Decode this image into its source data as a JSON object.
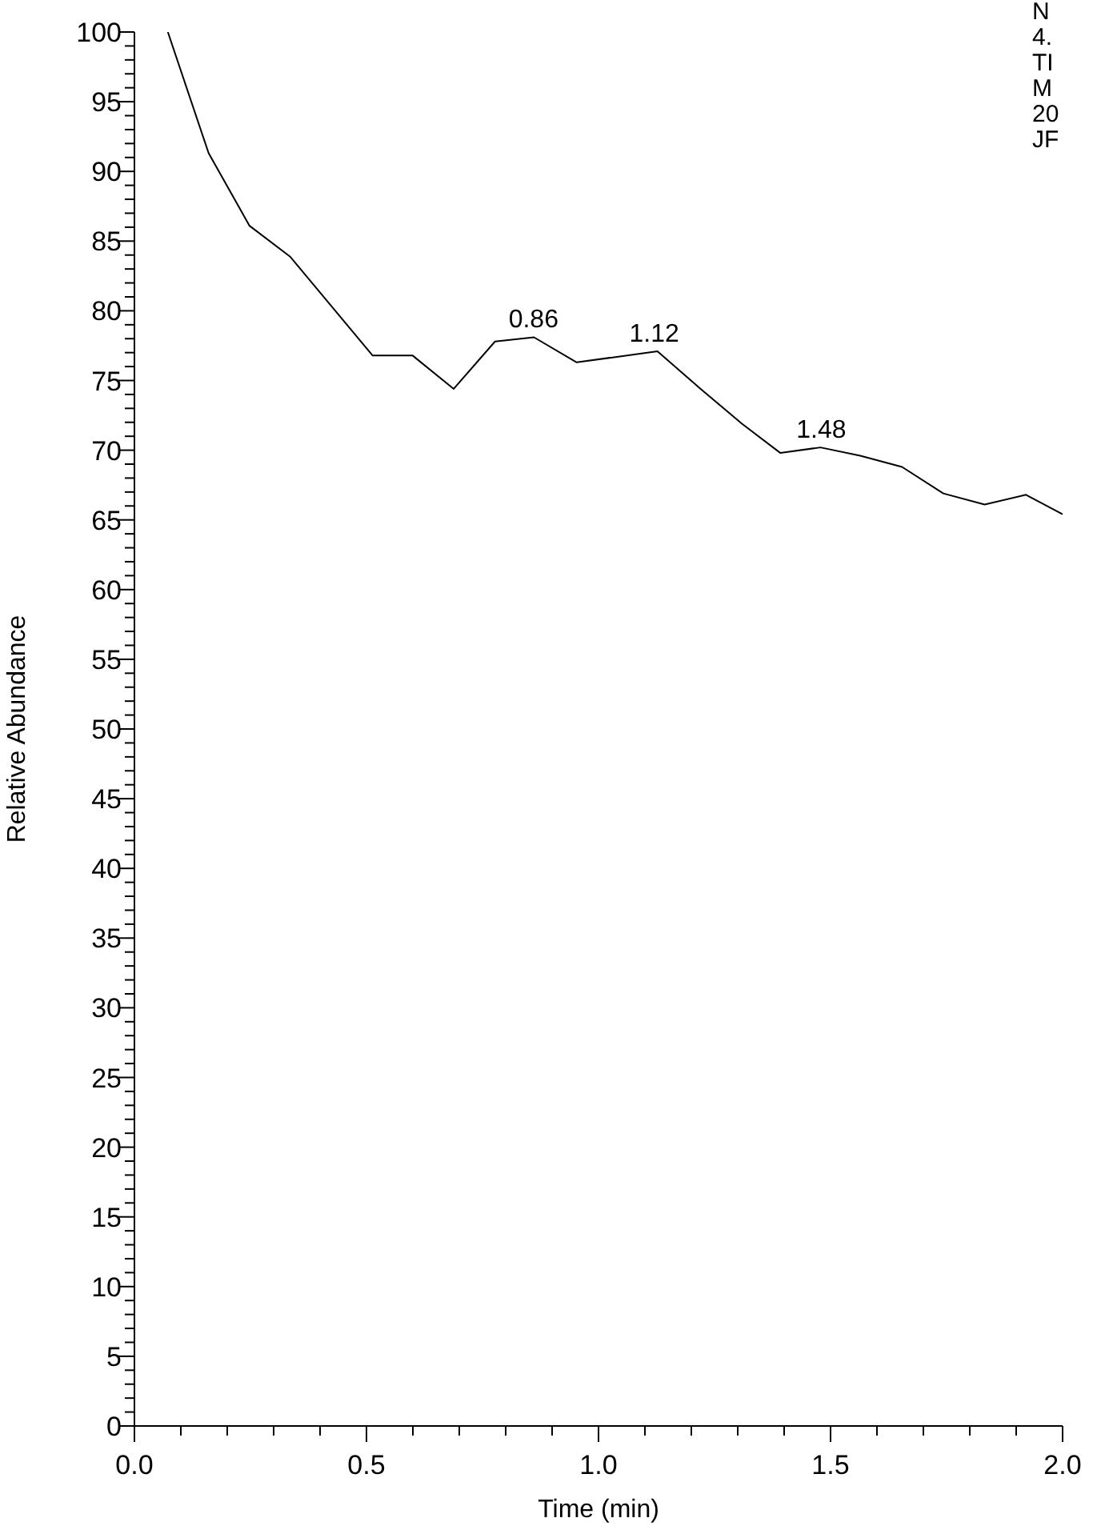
{
  "chart_data": {
    "type": "line",
    "xlabel": "Time (min)",
    "ylabel": "Relative Abundance",
    "x": [
      0.072,
      0.16,
      0.248,
      0.335,
      0.513,
      0.599,
      0.688,
      0.777,
      0.861,
      0.953,
      1.127,
      1.22,
      1.309,
      1.392,
      1.478,
      1.564,
      1.654,
      1.743,
      1.832,
      1.921,
      2.0
    ],
    "series": [
      {
        "color": "#000000",
        "values": [
          100,
          91.3,
          86.1,
          83.9,
          76.8,
          76.8,
          74.4,
          77.8,
          78.1,
          76.3,
          77.1,
          74.4,
          71.9,
          69.8,
          70.2,
          69.6,
          68.8,
          66.9,
          66.1,
          66.8,
          65.4
        ]
      }
    ],
    "xlim": [
      0,
      2
    ],
    "xticks": [
      {
        "value": 0,
        "label": "0.0"
      },
      {
        "value": 0.1,
        "label": null
      },
      {
        "value": 0.2,
        "label": null
      },
      {
        "value": 0.3,
        "label": null
      },
      {
        "value": 0.4,
        "label": null
      },
      0.5,
      {
        "value": 0.6,
        "label": null
      },
      {
        "value": 0.7,
        "label": null
      },
      {
        "value": 0.8,
        "label": null
      },
      {
        "value": 0.9,
        "label": null
      },
      {
        "value": 1,
        "label": "1.0"
      },
      {
        "value": 1.1,
        "label": null
      },
      {
        "value": 1.2,
        "label": null
      },
      {
        "value": 1.3,
        "label": null
      },
      {
        "value": 1.4,
        "label": null
      },
      1.5,
      {
        "value": 1.6,
        "label": null
      },
      {
        "value": 1.7,
        "label": null
      },
      {
        "value": 1.8,
        "label": null
      },
      {
        "value": 1.9,
        "label": null
      },
      {
        "value": 2,
        "label": "2.0"
      }
    ],
    "ylim": [
      0,
      100
    ],
    "yticks": [
      0,
      {
        "value": 1,
        "label": null
      },
      {
        "value": 2,
        "label": null
      },
      {
        "value": 3,
        "label": null
      },
      {
        "value": 4,
        "label": null
      },
      5,
      {
        "value": 6,
        "label": null
      },
      {
        "value": 7,
        "label": null
      },
      {
        "value": 8,
        "label": null
      },
      {
        "value": 9,
        "label": null
      },
      10,
      {
        "value": 11,
        "label": null
      },
      {
        "value": 12,
        "label": null
      },
      {
        "value": 13,
        "label": null
      },
      {
        "value": 14,
        "label": null
      },
      15,
      {
        "value": 16,
        "label": null
      },
      {
        "value": 17,
        "label": null
      },
      {
        "value": 18,
        "label": null
      },
      {
        "value": 19,
        "label": null
      },
      20,
      {
        "value": 21,
        "label": null
      },
      {
        "value": 22,
        "label": null
      },
      {
        "value": 23,
        "label": null
      },
      {
        "value": 24,
        "label": null
      },
      25,
      {
        "value": 26,
        "label": null
      },
      {
        "value": 27,
        "label": null
      },
      {
        "value": 28,
        "label": null
      },
      {
        "value": 29,
        "label": null
      },
      30,
      {
        "value": 31,
        "label": null
      },
      {
        "value": 32,
        "label": null
      },
      {
        "value": 33,
        "label": null
      },
      {
        "value": 34,
        "label": null
      },
      35,
      {
        "value": 36,
        "label": null
      },
      {
        "value": 37,
        "label": null
      },
      {
        "value": 38,
        "label": null
      },
      {
        "value": 39,
        "label": null
      },
      40,
      {
        "value": 41,
        "label": null
      },
      {
        "value": 42,
        "label": null
      },
      {
        "value": 43,
        "label": null
      },
      {
        "value": 44,
        "label": null
      },
      45,
      {
        "value": 46,
        "label": null
      },
      {
        "value": 47,
        "label": null
      },
      {
        "value": 48,
        "label": null
      },
      {
        "value": 49,
        "label": null
      },
      50,
      {
        "value": 51,
        "label": null
      },
      {
        "value": 52,
        "label": null
      },
      {
        "value": 53,
        "label": null
      },
      {
        "value": 54,
        "label": null
      },
      55,
      {
        "value": 56,
        "label": null
      },
      {
        "value": 57,
        "label": null
      },
      {
        "value": 58,
        "label": null
      },
      {
        "value": 59,
        "label": null
      },
      60,
      {
        "value": 61,
        "label": null
      },
      {
        "value": 62,
        "label": null
      },
      {
        "value": 63,
        "label": null
      },
      {
        "value": 64,
        "label": null
      },
      65,
      {
        "value": 66,
        "label": null
      },
      {
        "value": 67,
        "label": null
      },
      {
        "value": 68,
        "label": null
      },
      {
        "value": 69,
        "label": null
      },
      70,
      {
        "value": 71,
        "label": null
      },
      {
        "value": 72,
        "label": null
      },
      {
        "value": 73,
        "label": null
      },
      {
        "value": 74,
        "label": null
      },
      75,
      {
        "value": 76,
        "label": null
      },
      {
        "value": 77,
        "label": null
      },
      {
        "value": 78,
        "label": null
      },
      {
        "value": 79,
        "label": null
      },
      80,
      {
        "value": 81,
        "label": null
      },
      {
        "value": 82,
        "label": null
      },
      {
        "value": 83,
        "label": null
      },
      {
        "value": 84,
        "label": null
      },
      85,
      {
        "value": 86,
        "label": null
      },
      {
        "value": 87,
        "label": null
      },
      {
        "value": 88,
        "label": null
      },
      {
        "value": 89,
        "label": null
      },
      90,
      {
        "value": 91,
        "label": null
      },
      {
        "value": 92,
        "label": null
      },
      {
        "value": 93,
        "label": null
      },
      {
        "value": 94,
        "label": null
      },
      95,
      {
        "value": 96,
        "label": null
      },
      {
        "value": 97,
        "label": null
      },
      {
        "value": 98,
        "label": null
      },
      {
        "value": 99,
        "label": null
      },
      100
    ],
    "annotations": [
      {
        "text": "0.86",
        "x": 0.86,
        "y": 78.1
      },
      {
        "text": "1.12",
        "x": 1.12,
        "y": 77.1
      },
      {
        "text": "1.48",
        "x": 1.48,
        "y": 70.2
      },
      "N",
      "4.",
      "TI",
      "M",
      "20",
      "JF"
    ]
  }
}
